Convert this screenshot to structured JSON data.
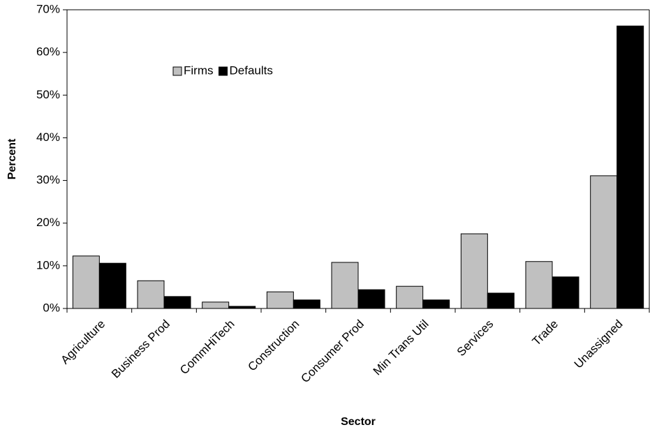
{
  "chart_data": {
    "type": "bar",
    "xlabel": "Sector",
    "ylabel": "Percent",
    "categories": [
      "Agriculture",
      "Business Prod",
      "CommHiTech",
      "Construction",
      "Consumer Prod",
      "Min Trans Util",
      "Services",
      "Trade",
      "Unassigned"
    ],
    "series": [
      {
        "name": "Firms",
        "color": "#c0c0c0",
        "values": [
          12.3,
          6.5,
          1.5,
          3.9,
          10.8,
          5.2,
          17.5,
          11.0,
          31.1
        ]
      },
      {
        "name": "Defaults",
        "color": "#000000",
        "values": [
          10.6,
          2.8,
          0.5,
          2.0,
          4.4,
          2.0,
          3.6,
          7.4,
          66.2
        ]
      }
    ],
    "ylim": [
      0,
      70
    ],
    "yticks": [
      {
        "value": 0,
        "label": "0%"
      },
      {
        "value": 10,
        "label": "10%"
      },
      {
        "value": 20,
        "label": "20%"
      },
      {
        "value": 30,
        "label": "30%"
      },
      {
        "value": 40,
        "label": "40%"
      },
      {
        "value": 50,
        "label": "50%"
      },
      {
        "value": 60,
        "label": "60%"
      },
      {
        "value": 70,
        "label": "70%"
      }
    ],
    "grid": false,
    "legend": "upper left"
  }
}
